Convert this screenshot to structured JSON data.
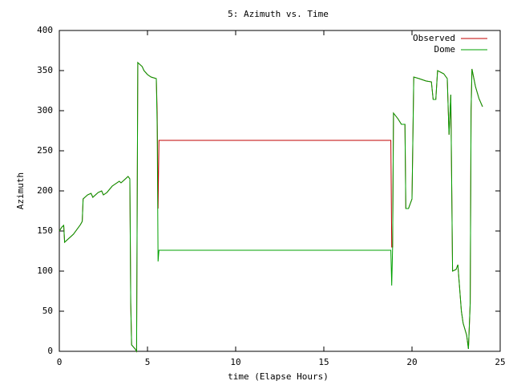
{
  "chart_data": {
    "type": "line",
    "title": "5: Azimuth vs. Time",
    "x_label": "time (Elapse Hours)",
    "y_label": "Azimuth",
    "x": [
      0,
      0.15,
      0.25,
      0.3,
      0.5,
      0.8,
      1.2,
      1.3,
      1.35,
      1.6,
      1.8,
      1.9,
      2.2,
      2.4,
      2.5,
      2.7,
      3.0,
      3.4,
      3.5,
      3.9,
      4.0,
      4.05,
      4.1,
      4.3,
      4.38,
      4.45,
      4.7,
      4.8,
      5.0,
      5.2,
      5.5,
      5.55,
      5.6,
      5.65,
      5.7,
      18.8,
      18.85,
      18.9,
      18.95,
      19.2,
      19.4,
      19.6,
      19.65,
      19.8,
      20.0,
      20.1,
      20.4,
      20.8,
      21.1,
      21.2,
      21.35,
      21.45,
      21.8,
      22.0,
      22.1,
      22.2,
      22.3,
      22.5,
      22.6,
      22.8,
      22.9,
      23.1,
      23.2,
      23.3,
      23.35,
      23.4,
      23.6,
      23.8,
      24.0
    ],
    "series": [
      {
        "name": "Observed",
        "color": "#c00000",
        "values": [
          150,
          155,
          157,
          136,
          140,
          146,
          158,
          162,
          190,
          195,
          197,
          192,
          198,
          200,
          195,
          198,
          206,
          212,
          210,
          218,
          215,
          60,
          8,
          3,
          0,
          360,
          355,
          350,
          345,
          342,
          340,
          298,
          178,
          263,
          263,
          263,
          130,
          130,
          297,
          290,
          283,
          283,
          178,
          178,
          190,
          342,
          340,
          337,
          336,
          314,
          314,
          350,
          346,
          340,
          270,
          320,
          100,
          102,
          108,
          50,
          35,
          20,
          3,
          60,
          300,
          352,
          330,
          315,
          305
        ]
      },
      {
        "name": "Dome",
        "color": "#00a000",
        "values": [
          150,
          155,
          157,
          136,
          140,
          146,
          158,
          162,
          190,
          195,
          197,
          192,
          198,
          200,
          195,
          198,
          206,
          212,
          210,
          218,
          215,
          60,
          8,
          3,
          0,
          360,
          355,
          350,
          345,
          342,
          340,
          280,
          112,
          126,
          126,
          126,
          82,
          130,
          297,
          290,
          283,
          283,
          178,
          178,
          190,
          342,
          340,
          337,
          336,
          314,
          314,
          350,
          346,
          340,
          270,
          320,
          100,
          102,
          108,
          50,
          35,
          20,
          3,
          60,
          300,
          352,
          330,
          315,
          305
        ]
      }
    ],
    "xlim": [
      0,
      25
    ],
    "xticks": [
      0,
      5,
      10,
      15,
      20,
      25
    ],
    "ylim": [
      0,
      400
    ],
    "yticks": [
      0,
      50,
      100,
      150,
      200,
      250,
      300,
      350,
      400
    ],
    "grid": false,
    "legend": "top-right"
  }
}
